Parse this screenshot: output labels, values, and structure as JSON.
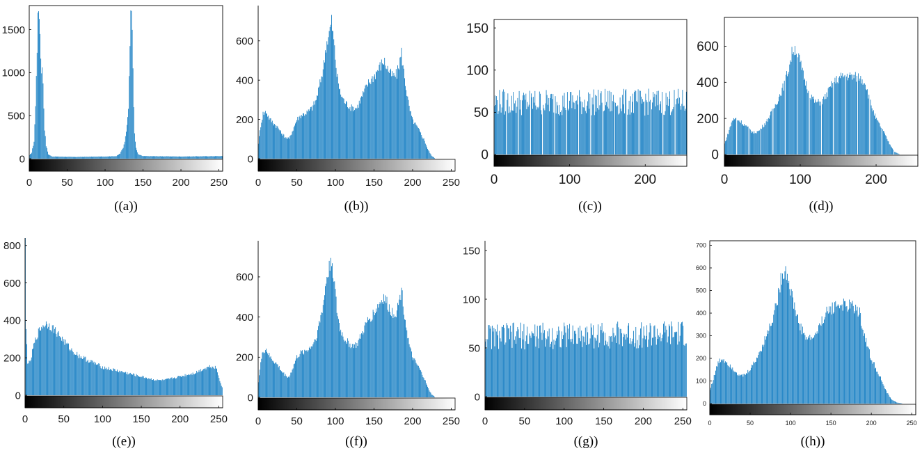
{
  "colors": {
    "bar": "#0072bd",
    "axis": "#000000",
    "text": "#1a1a1a"
  },
  "chart_data": [
    {
      "id": "a",
      "type": "bar",
      "caption": "((a))",
      "xlim": [
        0,
        255
      ],
      "ylim": [
        0,
        1780
      ],
      "xticks": [
        0,
        50,
        100,
        150,
        200,
        250
      ],
      "yticks": [
        0,
        500,
        1000,
        1500
      ],
      "grid": false,
      "gradient_bar": true,
      "peaks": [
        [
          0,
          40
        ],
        [
          3,
          70
        ],
        [
          6,
          200
        ],
        [
          8,
          600
        ],
        [
          9,
          1000
        ],
        [
          10,
          1300
        ],
        [
          11,
          1600
        ],
        [
          12,
          1740
        ],
        [
          13,
          1700
        ],
        [
          14,
          1450
        ],
        [
          15,
          1200
        ],
        [
          16,
          1050
        ],
        [
          17,
          1030
        ],
        [
          18,
          900
        ],
        [
          19,
          600
        ],
        [
          20,
          350
        ],
        [
          22,
          150
        ],
        [
          25,
          50
        ],
        [
          30,
          25
        ],
        [
          60,
          20
        ],
        [
          100,
          25
        ],
        [
          115,
          30
        ],
        [
          120,
          60
        ],
        [
          124,
          130
        ],
        [
          127,
          250
        ],
        [
          129,
          420
        ],
        [
          131,
          600
        ],
        [
          132,
          900
        ],
        [
          133,
          1300
        ],
        [
          134,
          1750
        ],
        [
          135,
          1760
        ],
        [
          136,
          1500
        ],
        [
          137,
          1000
        ],
        [
          138,
          600
        ],
        [
          139,
          300
        ],
        [
          141,
          120
        ],
        [
          144,
          50
        ],
        [
          150,
          30
        ],
        [
          200,
          25
        ],
        [
          255,
          30
        ]
      ]
    },
    {
      "id": "b",
      "type": "bar",
      "caption": "((b))",
      "xlim": [
        0,
        255
      ],
      "ylim": [
        0,
        780
      ],
      "xticks": [
        0,
        50,
        100,
        150,
        200,
        250
      ],
      "yticks": [
        0,
        200,
        400,
        600
      ],
      "grid": false,
      "gradient_bar": true,
      "peaks": [
        [
          0,
          80
        ],
        [
          3,
          170
        ],
        [
          6,
          230
        ],
        [
          10,
          240
        ],
        [
          15,
          200
        ],
        [
          20,
          180
        ],
        [
          25,
          160
        ],
        [
          30,
          130
        ],
        [
          35,
          110
        ],
        [
          40,
          100
        ],
        [
          45,
          150
        ],
        [
          50,
          200
        ],
        [
          55,
          220
        ],
        [
          60,
          230
        ],
        [
          65,
          240
        ],
        [
          70,
          260
        ],
        [
          75,
          300
        ],
        [
          80,
          380
        ],
        [
          85,
          480
        ],
        [
          88,
          580
        ],
        [
          92,
          640
        ],
        [
          95,
          700
        ],
        [
          98,
          600
        ],
        [
          102,
          430
        ],
        [
          106,
          340
        ],
        [
          112,
          290
        ],
        [
          120,
          260
        ],
        [
          128,
          260
        ],
        [
          135,
          320
        ],
        [
          142,
          380
        ],
        [
          150,
          420
        ],
        [
          158,
          470
        ],
        [
          163,
          500
        ],
        [
          168,
          460
        ],
        [
          172,
          430
        ],
        [
          176,
          420
        ],
        [
          180,
          430
        ],
        [
          184,
          500
        ],
        [
          186,
          540
        ],
        [
          188,
          470
        ],
        [
          192,
          360
        ],
        [
          196,
          260
        ],
        [
          200,
          200
        ],
        [
          208,
          150
        ],
        [
          215,
          100
        ],
        [
          220,
          50
        ],
        [
          225,
          15
        ],
        [
          230,
          0
        ],
        [
          255,
          0
        ]
      ]
    },
    {
      "id": "c",
      "type": "bar",
      "caption": "((c))",
      "xlim": [
        0,
        255
      ],
      "ylim": [
        0,
        160
      ],
      "xticks": [
        0,
        100,
        200
      ],
      "yticks": [
        0,
        50,
        100,
        150
      ],
      "grid": false,
      "gradient_bar": true,
      "peaks": [
        [
          0,
          62
        ],
        [
          255,
          62
        ]
      ],
      "noise": 16,
      "gap_every": 16
    },
    {
      "id": "d",
      "type": "bar",
      "caption": "((d))",
      "xlim": [
        0,
        255
      ],
      "ylim": [
        0,
        760
      ],
      "xticks": [
        0,
        100,
        200
      ],
      "yticks": [
        0,
        200,
        400,
        600
      ],
      "grid": false,
      "gradient_bar": true,
      "peaks": [
        [
          0,
          60
        ],
        [
          5,
          120
        ],
        [
          10,
          190
        ],
        [
          15,
          200
        ],
        [
          22,
          180
        ],
        [
          30,
          150
        ],
        [
          38,
          120
        ],
        [
          45,
          130
        ],
        [
          55,
          180
        ],
        [
          62,
          230
        ],
        [
          70,
          300
        ],
        [
          78,
          380
        ],
        [
          85,
          480
        ],
        [
          90,
          580
        ],
        [
          94,
          590
        ],
        [
          98,
          540
        ],
        [
          104,
          440
        ],
        [
          112,
          340
        ],
        [
          120,
          290
        ],
        [
          128,
          290
        ],
        [
          135,
          330
        ],
        [
          142,
          390
        ],
        [
          150,
          420
        ],
        [
          160,
          440
        ],
        [
          170,
          430
        ],
        [
          178,
          430
        ],
        [
          186,
          400
        ],
        [
          192,
          300
        ],
        [
          200,
          200
        ],
        [
          210,
          130
        ],
        [
          218,
          60
        ],
        [
          225,
          15
        ],
        [
          232,
          0
        ],
        [
          255,
          0
        ]
      ],
      "gap_every": 16
    },
    {
      "id": "e",
      "type": "bar",
      "caption": "((e))",
      "xlim": [
        0,
        255
      ],
      "ylim": [
        0,
        840
      ],
      "xticks": [
        0,
        50,
        100,
        150,
        200,
        250
      ],
      "yticks": [
        0,
        200,
        400,
        600,
        800
      ],
      "grid": false,
      "gradient_bar": true,
      "peaks": [
        [
          0,
          830
        ],
        [
          1,
          350
        ],
        [
          3,
          180
        ],
        [
          6,
          170
        ],
        [
          10,
          250
        ],
        [
          15,
          320
        ],
        [
          20,
          360
        ],
        [
          25,
          380
        ],
        [
          30,
          380
        ],
        [
          35,
          360
        ],
        [
          40,
          340
        ],
        [
          50,
          290
        ],
        [
          60,
          240
        ],
        [
          70,
          210
        ],
        [
          80,
          190
        ],
        [
          90,
          170
        ],
        [
          100,
          150
        ],
        [
          110,
          140
        ],
        [
          120,
          130
        ],
        [
          130,
          120
        ],
        [
          140,
          110
        ],
        [
          150,
          100
        ],
        [
          160,
          90
        ],
        [
          170,
          80
        ],
        [
          180,
          80
        ],
        [
          190,
          90
        ],
        [
          200,
          100
        ],
        [
          210,
          110
        ],
        [
          220,
          120
        ],
        [
          230,
          140
        ],
        [
          240,
          155
        ],
        [
          247,
          150
        ],
        [
          252,
          80
        ],
        [
          255,
          40
        ]
      ]
    },
    {
      "id": "f",
      "type": "bar",
      "caption": "((f))",
      "xlim": [
        0,
        255
      ],
      "ylim": [
        0,
        780
      ],
      "xticks": [
        0,
        50,
        100,
        150,
        200,
        250
      ],
      "yticks": [
        0,
        200,
        400,
        600
      ],
      "grid": false,
      "gradient_bar": true,
      "peaks": [
        [
          0,
          80
        ],
        [
          3,
          170
        ],
        [
          6,
          230
        ],
        [
          10,
          240
        ],
        [
          15,
          200
        ],
        [
          20,
          180
        ],
        [
          25,
          160
        ],
        [
          30,
          130
        ],
        [
          35,
          110
        ],
        [
          40,
          100
        ],
        [
          45,
          150
        ],
        [
          50,
          200
        ],
        [
          55,
          220
        ],
        [
          60,
          230
        ],
        [
          65,
          240
        ],
        [
          70,
          260
        ],
        [
          75,
          300
        ],
        [
          80,
          380
        ],
        [
          85,
          480
        ],
        [
          88,
          580
        ],
        [
          92,
          640
        ],
        [
          95,
          700
        ],
        [
          98,
          600
        ],
        [
          102,
          430
        ],
        [
          106,
          340
        ],
        [
          112,
          290
        ],
        [
          120,
          260
        ],
        [
          128,
          260
        ],
        [
          135,
          320
        ],
        [
          142,
          380
        ],
        [
          150,
          420
        ],
        [
          158,
          470
        ],
        [
          163,
          500
        ],
        [
          168,
          460
        ],
        [
          172,
          430
        ],
        [
          176,
          420
        ],
        [
          180,
          430
        ],
        [
          184,
          500
        ],
        [
          186,
          540
        ],
        [
          188,
          470
        ],
        [
          192,
          360
        ],
        [
          196,
          260
        ],
        [
          200,
          200
        ],
        [
          208,
          150
        ],
        [
          215,
          100
        ],
        [
          220,
          50
        ],
        [
          225,
          15
        ],
        [
          230,
          0
        ],
        [
          255,
          0
        ]
      ]
    },
    {
      "id": "g",
      "type": "bar",
      "caption": "((g))",
      "xlim": [
        0,
        255
      ],
      "ylim": [
        0,
        160
      ],
      "xticks": [
        0,
        50,
        100,
        150,
        200,
        250
      ],
      "yticks": [
        0,
        50,
        100,
        150
      ],
      "grid": false,
      "gradient_bar": true,
      "peaks": [
        [
          0,
          62
        ],
        [
          255,
          64
        ]
      ],
      "noise": 14
    },
    {
      "id": "h",
      "type": "bar",
      "caption": "((h))",
      "xlim": [
        0,
        255
      ],
      "ylim": [
        0,
        720
      ],
      "xticks": [
        0,
        50,
        100,
        150,
        200,
        250
      ],
      "yticks": [
        0,
        100,
        200,
        300,
        400,
        500,
        600,
        700
      ],
      "grid": false,
      "gradient_bar": true,
      "peaks": [
        [
          0,
          60
        ],
        [
          5,
          120
        ],
        [
          10,
          180
        ],
        [
          15,
          200
        ],
        [
          22,
          180
        ],
        [
          30,
          150
        ],
        [
          38,
          120
        ],
        [
          45,
          130
        ],
        [
          55,
          180
        ],
        [
          62,
          230
        ],
        [
          70,
          300
        ],
        [
          78,
          380
        ],
        [
          85,
          480
        ],
        [
          90,
          580
        ],
        [
          94,
          590
        ],
        [
          98,
          540
        ],
        [
          104,
          440
        ],
        [
          112,
          340
        ],
        [
          120,
          290
        ],
        [
          128,
          290
        ],
        [
          135,
          330
        ],
        [
          142,
          390
        ],
        [
          150,
          420
        ],
        [
          160,
          440
        ],
        [
          170,
          430
        ],
        [
          178,
          430
        ],
        [
          186,
          400
        ],
        [
          192,
          300
        ],
        [
          200,
          200
        ],
        [
          210,
          130
        ],
        [
          218,
          60
        ],
        [
          225,
          20
        ],
        [
          232,
          5
        ],
        [
          240,
          0
        ],
        [
          255,
          0
        ]
      ]
    }
  ]
}
